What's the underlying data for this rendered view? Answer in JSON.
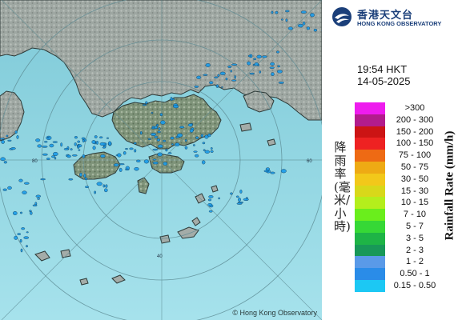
{
  "logo": {
    "name_cn": "香港天文台",
    "name_en": "HONG KONG OBSERVATORY"
  },
  "time": {
    "clock": "19:54 HKT",
    "date": "14-05-2025"
  },
  "legend": {
    "title_cn": "降雨率(毫米/小時)",
    "title_en": "Rainfall Rate (mm/h)",
    "items": [
      {
        "label": ">300",
        "color": "#ee1cee"
      },
      {
        "label": "200 - 300",
        "color": "#b21c8c"
      },
      {
        "label": "150 - 200",
        "color": "#cc1414"
      },
      {
        "label": "100 - 150",
        "color": "#ee2222"
      },
      {
        "label": "75 - 100",
        "color": "#ee6a14"
      },
      {
        "label": "50 - 75",
        "color": "#eeaa14"
      },
      {
        "label": "30 - 50",
        "color": "#f2c81a"
      },
      {
        "label": "15 - 30",
        "color": "#d8d81a"
      },
      {
        "label": "10 - 15",
        "color": "#b4ee1c"
      },
      {
        "label": "7 - 10",
        "color": "#6aee1c"
      },
      {
        "label": "5 - 7",
        "color": "#36d836"
      },
      {
        "label": "3 - 5",
        "color": "#1eb446"
      },
      {
        "label": "2 - 3",
        "color": "#189858"
      },
      {
        "label": "1 - 2",
        "color": "#5a9ae8"
      },
      {
        "label": "0.50 - 1",
        "color": "#2a8ce8"
      },
      {
        "label": "0.15 - 0.50",
        "color": "#1cc8f4"
      }
    ]
  },
  "map": {
    "range_rings": [
      {
        "label": "40"
      },
      {
        "label": "60"
      },
      {
        "label": "80"
      }
    ],
    "copyright": "© Hong Kong Observatory",
    "colors": {
      "sea": "#8fd3e0",
      "land": "#9aa39e",
      "rain": "#1a9ae8"
    }
  }
}
